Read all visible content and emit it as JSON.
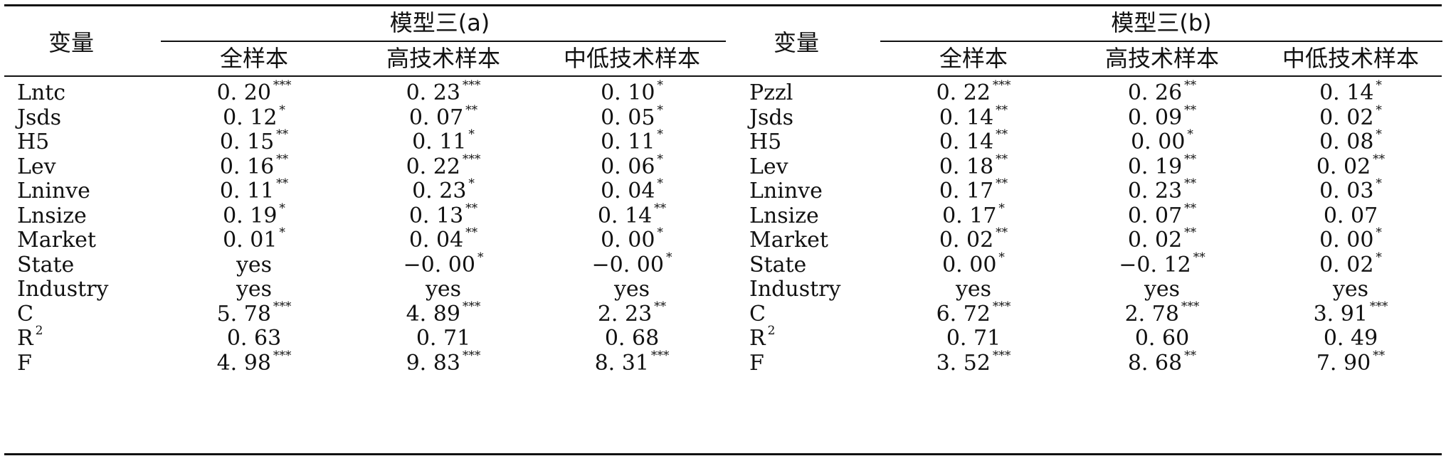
{
  "headers": {
    "var_label_left": "变量",
    "var_label_right": "变量",
    "group_left": "模型三(a)",
    "group_right": "模型三(b)",
    "sub_left": [
      "全样本",
      "高技术样本",
      "中低技术样本"
    ],
    "sub_right": [
      "全样本",
      "高技术样本",
      "中低技术样本"
    ]
  },
  "rows": [
    {
      "left_var": "Lntc",
      "left": [
        [
          "0. 20",
          "***"
        ],
        [
          "0. 23",
          "***"
        ],
        [
          "0. 10",
          "*"
        ]
      ],
      "right_var": "Pzzl",
      "right": [
        [
          "0. 22",
          "***"
        ],
        [
          "0. 26",
          "**"
        ],
        [
          "0. 14",
          "*"
        ]
      ]
    },
    {
      "left_var": "Jsds",
      "left": [
        [
          "0. 12",
          "*"
        ],
        [
          "0. 07",
          "**"
        ],
        [
          "0. 05",
          "*"
        ]
      ],
      "right_var": "Jsds",
      "right": [
        [
          "0. 14",
          "**"
        ],
        [
          "0. 09",
          "**"
        ],
        [
          "0. 02",
          "*"
        ]
      ]
    },
    {
      "left_var": "H5",
      "left": [
        [
          "0. 15",
          "**"
        ],
        [
          "0. 11",
          "*"
        ],
        [
          "0. 11",
          "*"
        ]
      ],
      "right_var": "H5",
      "right": [
        [
          "0. 14",
          "**"
        ],
        [
          "0. 00",
          "*"
        ],
        [
          "0. 08",
          "*"
        ]
      ]
    },
    {
      "left_var": "Lev",
      "left": [
        [
          "0. 16",
          "**"
        ],
        [
          "0. 22",
          "***"
        ],
        [
          "0. 06",
          "*"
        ]
      ],
      "right_var": "Lev",
      "right": [
        [
          "0. 18",
          "**"
        ],
        [
          "0. 19",
          "**"
        ],
        [
          "0. 02",
          "**"
        ]
      ]
    },
    {
      "left_var": "Lninve",
      "left": [
        [
          "0. 11",
          "**"
        ],
        [
          "0. 23",
          "*"
        ],
        [
          "0. 04",
          "*"
        ]
      ],
      "right_var": "Lninve",
      "right": [
        [
          "0. 17",
          "**"
        ],
        [
          "0. 23",
          "**"
        ],
        [
          "0. 03",
          "*"
        ]
      ]
    },
    {
      "left_var": "Lnsize",
      "left": [
        [
          "0. 19",
          "*"
        ],
        [
          "0. 13",
          "**"
        ],
        [
          "0. 14",
          "**"
        ]
      ],
      "right_var": "Lnsize",
      "right": [
        [
          "0. 17",
          "*"
        ],
        [
          "0. 07",
          "**"
        ],
        [
          "0. 07",
          ""
        ]
      ]
    },
    {
      "left_var": "Market",
      "left": [
        [
          "0. 01",
          "*"
        ],
        [
          "0. 04",
          "**"
        ],
        [
          "0. 00",
          "*"
        ]
      ],
      "right_var": "Market",
      "right": [
        [
          "0. 02",
          "**"
        ],
        [
          "0. 02",
          "**"
        ],
        [
          "0. 00",
          "*"
        ]
      ]
    },
    {
      "left_var": "State",
      "left": [
        [
          "yes",
          ""
        ],
        [
          "−0. 00",
          "*"
        ],
        [
          "−0. 00",
          "*"
        ]
      ],
      "right_var": "State",
      "right": [
        [
          "0. 00",
          "*"
        ],
        [
          "−0. 12",
          "**"
        ],
        [
          "0. 02",
          "*"
        ]
      ]
    },
    {
      "left_var": "Industry",
      "left": [
        [
          "yes",
          ""
        ],
        [
          "yes",
          ""
        ],
        [
          "yes",
          ""
        ]
      ],
      "right_var": "Industry",
      "right": [
        [
          "yes",
          ""
        ],
        [
          "yes",
          ""
        ],
        [
          "yes",
          ""
        ]
      ]
    },
    {
      "left_var": "C",
      "left": [
        [
          "5. 78",
          "***"
        ],
        [
          "4. 89",
          "***"
        ],
        [
          "2. 23",
          "**"
        ]
      ],
      "right_var": "C",
      "right": [
        [
          "6. 72",
          "***"
        ],
        [
          "2. 78",
          "***"
        ],
        [
          "3. 91",
          "***"
        ]
      ]
    },
    {
      "left_var": "R",
      "left_var_sup": "2",
      "left": [
        [
          "0. 63",
          ""
        ],
        [
          "0. 71",
          ""
        ],
        [
          "0. 68",
          ""
        ]
      ],
      "right_var": "R",
      "right_var_sup": "2",
      "right": [
        [
          "0. 71",
          ""
        ],
        [
          "0. 60",
          ""
        ],
        [
          "0. 49",
          ""
        ]
      ]
    },
    {
      "left_var": "F",
      "left": [
        [
          "4. 98",
          "***"
        ],
        [
          "9. 83",
          "***"
        ],
        [
          "8. 31",
          "***"
        ]
      ],
      "right_var": "F",
      "right": [
        [
          "3. 52",
          "***"
        ],
        [
          "8. 68",
          "**"
        ],
        [
          "7. 90",
          "**"
        ]
      ]
    }
  ]
}
